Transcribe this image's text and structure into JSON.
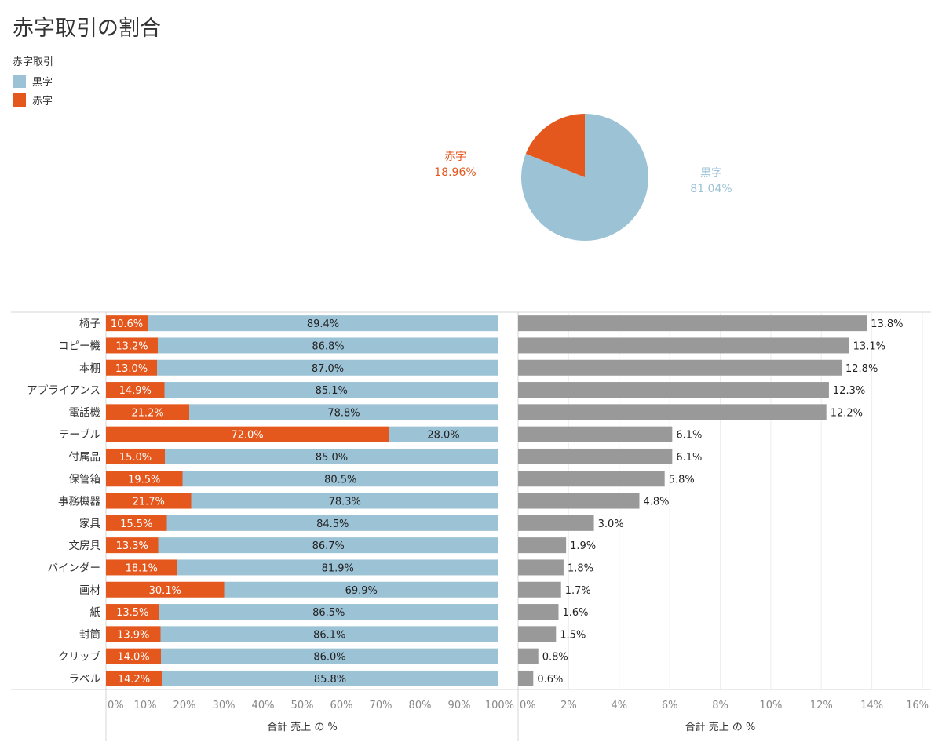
{
  "title": "赤字取引の割合",
  "legend": {
    "title": "赤字取引",
    "items": [
      {
        "label": "黒字",
        "color": "#9cc2d6"
      },
      {
        "label": "赤字",
        "color": "#e4571d"
      }
    ]
  },
  "colors": {
    "profit": "#9cc2d6",
    "loss": "#e4571d",
    "sales": "#999999",
    "grid": "#eeeeee",
    "axis": "#d4d4d4",
    "text": "#333333",
    "tick": "#888888"
  },
  "chart_data": [
    {
      "type": "pie",
      "slices": [
        {
          "name": "黒字",
          "value": 81.04,
          "label": "81.04%"
        },
        {
          "name": "赤字",
          "value": 18.96,
          "label": "18.96%"
        }
      ]
    },
    {
      "type": "bar",
      "stacked": true,
      "orientation": "horizontal",
      "categories": [
        "椅子",
        "コピー機",
        "本棚",
        "アプライアンス",
        "電話機",
        "テーブル",
        "付属品",
        "保管箱",
        "事務機器",
        "家具",
        "文房具",
        "バインダー",
        "画材",
        "紙",
        "封筒",
        "クリップ",
        "ラベル"
      ],
      "series": [
        {
          "name": "赤字",
          "values": [
            10.6,
            13.2,
            13.0,
            14.9,
            21.2,
            72.0,
            15.0,
            19.5,
            21.7,
            15.5,
            13.3,
            18.1,
            30.1,
            13.5,
            13.9,
            14.0,
            14.2
          ]
        },
        {
          "name": "黒字",
          "values": [
            89.4,
            86.8,
            87.0,
            85.1,
            78.8,
            28.0,
            85.0,
            80.5,
            78.3,
            84.5,
            86.7,
            81.9,
            69.9,
            86.5,
            86.1,
            86.0,
            85.8
          ]
        }
      ],
      "xlabel": "合計 売上 の %",
      "xlim": [
        0,
        100
      ],
      "xticks": [
        "0%",
        "10%",
        "20%",
        "30%",
        "40%",
        "50%",
        "60%",
        "70%",
        "80%",
        "90%",
        "100%"
      ]
    },
    {
      "type": "bar",
      "orientation": "horizontal",
      "categories": [
        "椅子",
        "コピー機",
        "本棚",
        "アプライアンス",
        "電話機",
        "テーブル",
        "付属品",
        "保管箱",
        "事務機器",
        "家具",
        "文房具",
        "バインダー",
        "画材",
        "紙",
        "封筒",
        "クリップ",
        "ラベル"
      ],
      "values": [
        13.8,
        13.1,
        12.8,
        12.3,
        12.2,
        6.1,
        6.1,
        5.8,
        4.8,
        3.0,
        1.9,
        1.8,
        1.7,
        1.6,
        1.5,
        0.8,
        0.6
      ],
      "xlabel": "合計 売上 の %",
      "xlim": [
        0,
        16
      ],
      "xticks": [
        "0%",
        "2%",
        "4%",
        "6%",
        "8%",
        "10%",
        "12%",
        "14%",
        "16%"
      ],
      "grid": true
    }
  ]
}
